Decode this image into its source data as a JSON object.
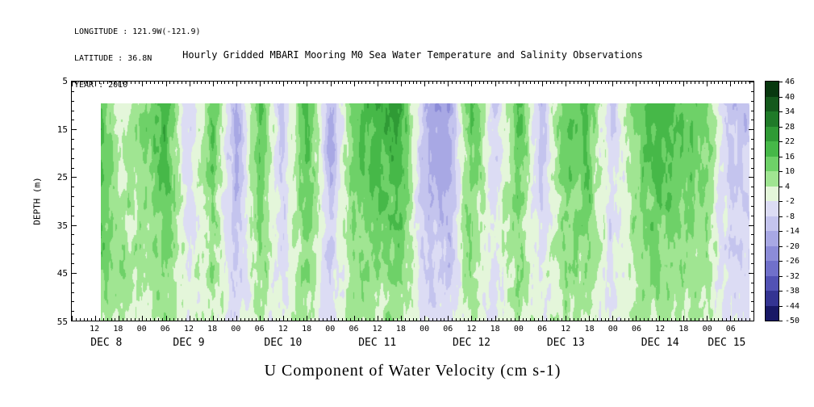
{
  "meta": {
    "longitude": "LONGITUDE : 121.9W(-121.9)",
    "latitude": "LATITUDE : 36.8N",
    "year": "YEAR : 2010"
  },
  "title": "Hourly Gridded MBARI Mooring M0 Sea Water Temperature and Salinity Observations",
  "axes": {
    "y_label": "DEPTH (m)",
    "y_ticks": [
      "5",
      "15",
      "25",
      "35",
      "45",
      "55"
    ],
    "x_tick_labels": [
      "12",
      "18",
      "00",
      "06",
      "12",
      "18",
      "00",
      "06",
      "12",
      "18",
      "00",
      "06",
      "12",
      "18",
      "00",
      "06",
      "12",
      "18",
      "00",
      "06",
      "12",
      "18",
      "00",
      "06",
      "12",
      "18",
      "00",
      "06"
    ],
    "x_date_labels": [
      {
        "label": "DEC 8",
        "hour": 9
      },
      {
        "label": "DEC 9",
        "hour": 30
      },
      {
        "label": "DEC 10",
        "hour": 54
      },
      {
        "label": "DEC 11",
        "hour": 78
      },
      {
        "label": "DEC 12",
        "hour": 102
      },
      {
        "label": "DEC 13",
        "hour": 126
      },
      {
        "label": "DEC 14",
        "hour": 150
      },
      {
        "label": "DEC 15",
        "hour": 167
      }
    ],
    "x_label": "U Component of Water Velocity (cm s-1)"
  },
  "colorbar": {
    "labels": [
      "46",
      "40",
      "34",
      "28",
      "22",
      "16",
      "10",
      "4",
      "-2",
      "-8",
      "-14",
      "-20",
      "-26",
      "-32",
      "-38",
      "-44",
      "-50"
    ],
    "colors": [
      "#08380f",
      "#14591c",
      "#1f7a28",
      "#2f9a35",
      "#46b848",
      "#6ed168",
      "#a0e592",
      "#e4f6da",
      "#dcdcf4",
      "#c4c4ee",
      "#a8a8e4",
      "#8c8cd8",
      "#7070ca",
      "#5252b4",
      "#343492",
      "#181866"
    ]
  },
  "chart_data": {
    "type": "heatmap",
    "title": "Hourly Gridded MBARI Mooring M0 Sea Water Temperature and Salinity Observations",
    "xlabel": "U Component of Water Velocity (cm s-1)",
    "ylabel": "DEPTH (m)",
    "units": "cm s-1",
    "time_start": "2010 DEC 8 12:00",
    "time_step_hours": 6,
    "depths_m": [
      10,
      19,
      28,
      37,
      46,
      55
    ],
    "ylim": [
      5,
      55
    ],
    "y_inverted": true,
    "data_top_depth_m": 9.5,
    "levels": [
      46,
      40,
      34,
      28,
      22,
      16,
      10,
      4,
      -2,
      -8,
      -14,
      -20,
      -26,
      -32,
      -38,
      -44,
      -50
    ],
    "values": [
      [
        26,
        -4,
        10,
        20,
        -10,
        16,
        -14,
        18,
        -10,
        20,
        -16,
        16,
        20,
        22,
        -14,
        -20,
        18,
        -10,
        18,
        -12,
        16,
        16,
        -10,
        14,
        20,
        16,
        14,
        -12
      ],
      [
        24,
        2,
        8,
        18,
        -8,
        15,
        -16,
        15,
        -8,
        18,
        -15,
        14,
        18,
        20,
        -12,
        -18,
        15,
        -8,
        15,
        -10,
        15,
        14,
        -8,
        12,
        18,
        14,
        12,
        -10
      ],
      [
        20,
        6,
        6,
        15,
        -6,
        12,
        -14,
        12,
        -6,
        15,
        -13,
        12,
        15,
        16,
        -10,
        -15,
        12,
        -6,
        12,
        -8,
        12,
        12,
        -6,
        10,
        15,
        12,
        10,
        -8
      ],
      [
        16,
        8,
        5,
        12,
        -4,
        10,
        -12,
        10,
        -4,
        12,
        -10,
        10,
        12,
        13,
        -8,
        -12,
        10,
        -4,
        10,
        -6,
        10,
        10,
        -5,
        8,
        12,
        10,
        8,
        -7
      ],
      [
        12,
        6,
        4,
        10,
        -2,
        8,
        -9,
        8,
        -3,
        10,
        -8,
        8,
        9,
        10,
        -6,
        -9,
        8,
        -3,
        8,
        -4,
        8,
        8,
        -4,
        6,
        10,
        8,
        6,
        -5
      ],
      [
        8,
        4,
        3,
        7,
        0,
        5,
        -6,
        5,
        -2,
        7,
        -5,
        5,
        6,
        7,
        -4,
        -6,
        5,
        -2,
        5,
        -3,
        5,
        5,
        -3,
        4,
        7,
        5,
        4,
        -4
      ]
    ]
  }
}
